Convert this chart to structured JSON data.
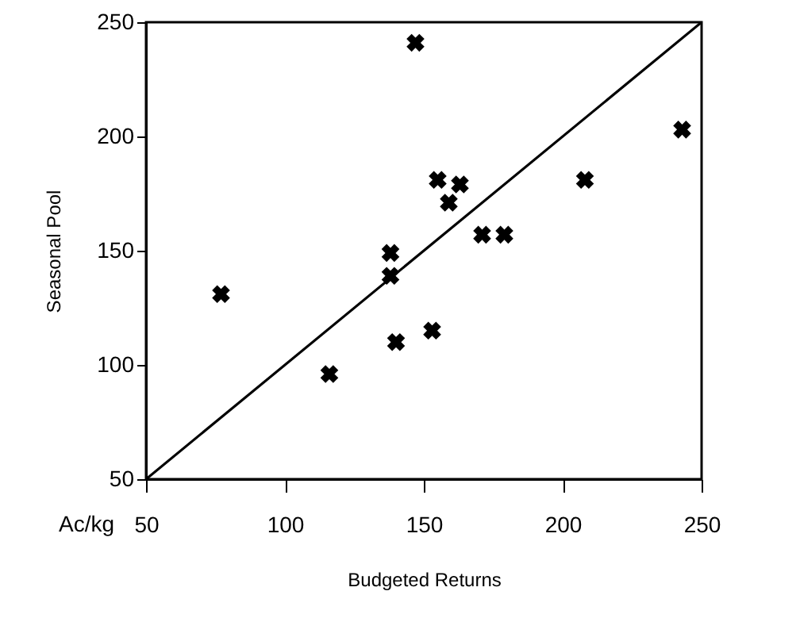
{
  "chart_data": {
    "type": "scatter",
    "xlabel": "Budgeted Returns",
    "ylabel": "Seasonal Pool",
    "annotations": [
      "Ac/kg"
    ],
    "xlim": [
      50,
      250
    ],
    "ylim": [
      50,
      250
    ],
    "xticks": [
      50,
      100,
      150,
      200,
      250
    ],
    "yticks": [
      50,
      100,
      150,
      200,
      250
    ],
    "grid": false,
    "series": [
      {
        "marker": "cross",
        "color": "#000000",
        "x": [
          147,
          77,
          116,
          138,
          138,
          140,
          153,
          155,
          163,
          159,
          171,
          179,
          208,
          243
        ],
        "values": [
          241,
          131,
          96,
          149,
          139,
          110,
          115,
          181,
          179,
          171,
          157,
          157,
          181,
          203
        ]
      },
      {
        "type": "line",
        "color": "#000000",
        "x": [
          50,
          250
        ],
        "values": [
          50,
          250
        ]
      }
    ]
  }
}
